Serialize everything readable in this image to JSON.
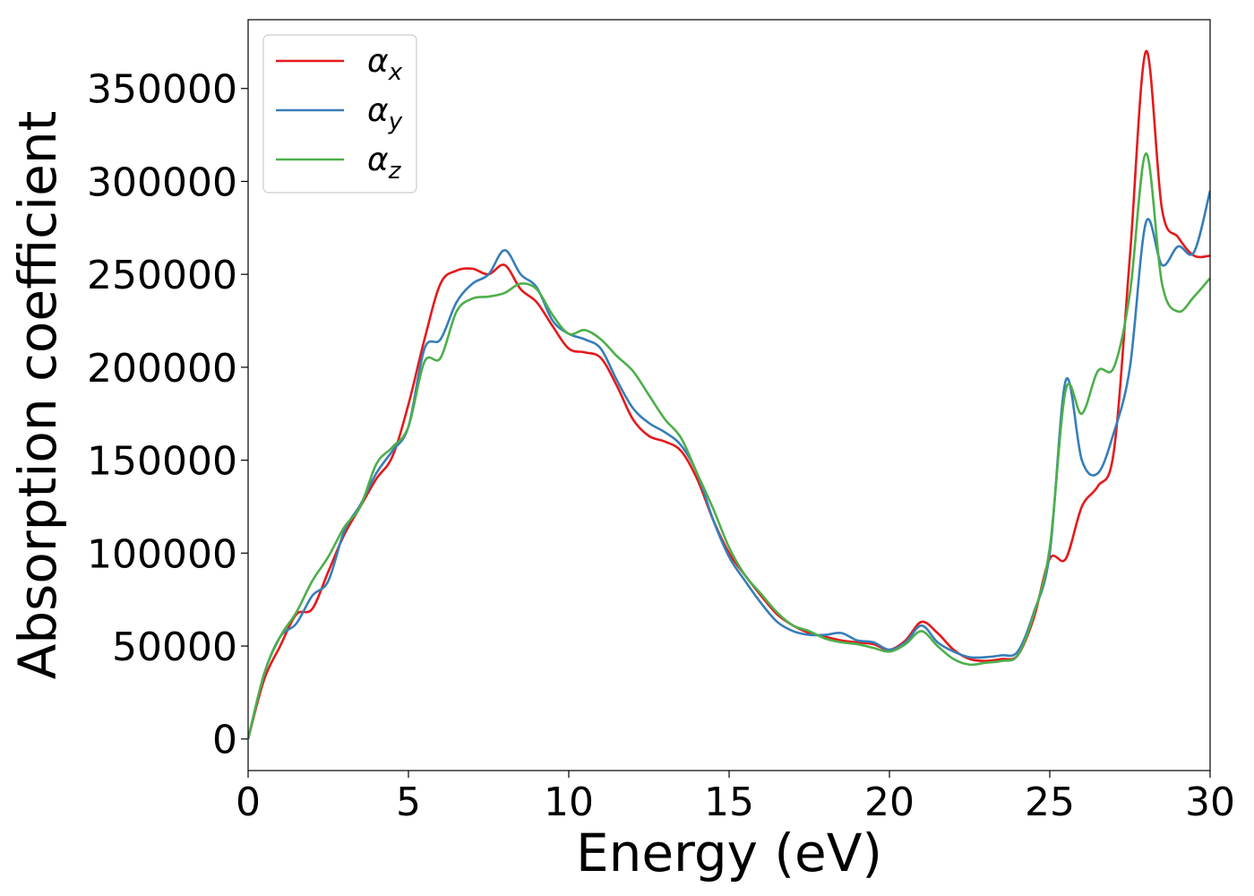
{
  "chart_data": {
    "type": "line",
    "xlabel": "Energy (eV)",
    "ylabel": "Absorption coefficient",
    "xlim": [
      0,
      30
    ],
    "ylim": [
      -17000,
      387000
    ],
    "xticks": [
      0,
      5,
      10,
      15,
      20,
      25,
      30
    ],
    "xtick_labels": [
      "0",
      "5",
      "10",
      "15",
      "20",
      "25",
      "30"
    ],
    "yticks": [
      0,
      50000,
      100000,
      150000,
      200000,
      250000,
      300000,
      350000
    ],
    "ytick_labels": [
      "0",
      "50000",
      "100000",
      "150000",
      "200000",
      "250000",
      "300000",
      "350000"
    ],
    "grid": false,
    "legend_position": "top-left",
    "x": [
      0,
      0.5,
      1,
      1.5,
      2,
      2.5,
      3,
      3.5,
      4,
      4.5,
      5,
      5.5,
      6,
      6.5,
      7,
      7.5,
      8,
      8.5,
      9,
      9.5,
      10,
      10.5,
      11,
      11.5,
      12,
      12.5,
      13,
      13.5,
      14,
      14.5,
      15,
      15.5,
      16,
      16.5,
      17,
      17.5,
      18,
      18.5,
      19,
      19.5,
      20,
      20.5,
      21,
      21.5,
      22,
      22.5,
      23,
      23.5,
      24,
      24.5,
      25,
      25.5,
      26,
      26.5,
      27,
      27.5,
      28,
      28.5,
      29,
      29.5,
      30
    ],
    "series": [
      {
        "name": "α",
        "subscript": "x",
        "color": "#e41a1c",
        "values": [
          0,
          32000,
          50000,
          67000,
          70000,
          90000,
          110000,
          125000,
          140000,
          152000,
          180000,
          215000,
          245000,
          252000,
          253000,
          250000,
          255000,
          242000,
          235000,
          222000,
          210000,
          208000,
          205000,
          190000,
          172000,
          163000,
          160000,
          155000,
          140000,
          118000,
          100000,
          88000,
          77000,
          67000,
          61000,
          57000,
          55000,
          53000,
          52000,
          51000,
          48000,
          53000,
          63000,
          57000,
          48000,
          43000,
          42000,
          43000,
          45000,
          65000,
          97000,
          97000,
          125000,
          136000,
          155000,
          260000,
          370000,
          285000,
          270000,
          260000,
          260000
        ]
      },
      {
        "name": "α",
        "subscript": "y",
        "color": "#377eb8",
        "values": [
          0,
          35000,
          55000,
          62000,
          77000,
          85000,
          112000,
          126000,
          143000,
          155000,
          168000,
          210000,
          215000,
          235000,
          245000,
          250000,
          263000,
          250000,
          243000,
          225000,
          218000,
          215000,
          210000,
          193000,
          178000,
          170000,
          165000,
          158000,
          143000,
          118000,
          98000,
          85000,
          73000,
          63000,
          58000,
          56000,
          56000,
          57000,
          53000,
          52000,
          48000,
          52000,
          61000,
          52000,
          47000,
          44000,
          44000,
          45000,
          47000,
          68000,
          100000,
          193000,
          150000,
          143000,
          165000,
          200000,
          278000,
          255000,
          265000,
          262000,
          295000
        ]
      },
      {
        "name": "α",
        "subscript": "z",
        "color": "#4daf4a",
        "values": [
          0,
          35000,
          55000,
          68000,
          85000,
          98000,
          114000,
          125000,
          148000,
          157000,
          168000,
          203000,
          205000,
          230000,
          237000,
          238000,
          240000,
          245000,
          242000,
          228000,
          218000,
          220000,
          215000,
          206000,
          198000,
          185000,
          172000,
          162000,
          143000,
          124000,
          103000,
          88000,
          78000,
          68000,
          61000,
          58000,
          54000,
          52000,
          51000,
          49000,
          47000,
          51000,
          58000,
          50000,
          43000,
          40000,
          41000,
          42000,
          45000,
          67000,
          103000,
          188000,
          175000,
          198000,
          200000,
          240000,
          315000,
          245000,
          230000,
          238000,
          248000
        ]
      }
    ]
  }
}
